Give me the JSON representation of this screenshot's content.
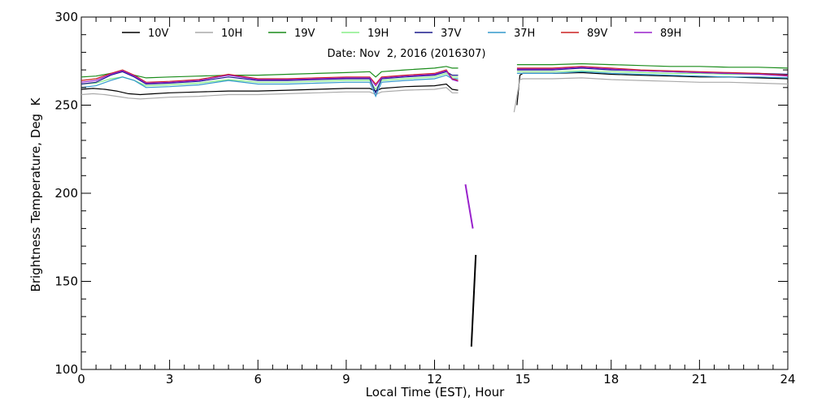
{
  "chart_data": {
    "type": "line",
    "title": "",
    "subtitle": "Date: Nov  2, 2016 (2016307)",
    "xlabel": "Local Time (EST), Hour",
    "ylabel": "Brightness Temperature, Deg  K",
    "xlim": [
      0,
      24
    ],
    "ylim": [
      100,
      300
    ],
    "xticks": [
      0,
      3,
      6,
      9,
      12,
      15,
      18,
      21,
      24
    ],
    "yticks": [
      100,
      150,
      200,
      250,
      300
    ],
    "grid": false,
    "legend_position": "top",
    "series": [
      {
        "name": "10V",
        "color": "#000000",
        "points": [
          [
            0,
            259
          ],
          [
            0.4,
            259.5
          ],
          [
            0.8,
            259
          ],
          [
            1.2,
            258
          ],
          [
            1.6,
            256.5
          ],
          [
            2.0,
            256
          ],
          [
            2.5,
            256.5
          ],
          [
            3,
            257
          ],
          [
            4,
            257.5
          ],
          [
            5,
            258
          ],
          [
            6,
            258
          ],
          [
            7,
            258.5
          ],
          [
            8,
            259
          ],
          [
            9,
            259.5
          ],
          [
            9.8,
            259.5
          ],
          [
            10.0,
            258
          ],
          [
            10.2,
            259.5
          ],
          [
            11,
            260.5
          ],
          [
            12,
            261
          ],
          [
            12.4,
            262
          ],
          [
            12.6,
            259
          ],
          [
            12.8,
            258.5
          ]
        ],
        "points2": [
          [
            13.25,
            113
          ],
          [
            13.4,
            165
          ]
        ],
        "points3": [
          [
            14.8,
            250
          ],
          [
            14.9,
            267
          ],
          [
            15,
            268
          ],
          [
            16,
            268
          ],
          [
            17,
            268.5
          ],
          [
            18,
            267.5
          ],
          [
            19,
            267
          ],
          [
            20,
            266.5
          ],
          [
            21,
            266
          ],
          [
            22,
            266
          ],
          [
            23,
            265.5
          ],
          [
            24,
            265
          ]
        ]
      },
      {
        "name": "10H",
        "color": "#aaaaaa",
        "points": [
          [
            0,
            256
          ],
          [
            0.4,
            256.5
          ],
          [
            0.8,
            256
          ],
          [
            1.2,
            255
          ],
          [
            1.6,
            254
          ],
          [
            2.0,
            253.5
          ],
          [
            2.5,
            254
          ],
          [
            3,
            254.5
          ],
          [
            4,
            255
          ],
          [
            5,
            256
          ],
          [
            6,
            256
          ],
          [
            7,
            256.5
          ],
          [
            8,
            257
          ],
          [
            9,
            257.5
          ],
          [
            9.8,
            257.5
          ],
          [
            10.0,
            256
          ],
          [
            10.2,
            257.5
          ],
          [
            11,
            258.5
          ],
          [
            12,
            259
          ],
          [
            12.4,
            260
          ],
          [
            12.6,
            257
          ],
          [
            12.8,
            257
          ]
        ],
        "points3": [
          [
            14.7,
            246
          ],
          [
            14.9,
            264.5
          ],
          [
            15,
            265
          ],
          [
            16,
            265
          ],
          [
            17,
            265.5
          ],
          [
            18,
            264.5
          ],
          [
            19,
            264
          ],
          [
            20,
            263.5
          ],
          [
            21,
            263
          ],
          [
            22,
            263
          ],
          [
            23,
            262.5
          ],
          [
            24,
            262
          ]
        ]
      },
      {
        "name": "19V",
        "color": "#1a8c1a",
        "points": [
          [
            0,
            266
          ],
          [
            0.5,
            266.5
          ],
          [
            1.0,
            268
          ],
          [
            1.4,
            269
          ],
          [
            1.8,
            267
          ],
          [
            2.2,
            265.5
          ],
          [
            3,
            266
          ],
          [
            4,
            266.5
          ],
          [
            5,
            267
          ],
          [
            6,
            267
          ],
          [
            7,
            267.5
          ],
          [
            8,
            268
          ],
          [
            9,
            268.5
          ],
          [
            9.8,
            269
          ],
          [
            10.0,
            266
          ],
          [
            10.2,
            269
          ],
          [
            11,
            270
          ],
          [
            12,
            271
          ],
          [
            12.4,
            272
          ],
          [
            12.6,
            271
          ],
          [
            12.8,
            271
          ]
        ],
        "points3": [
          [
            14.8,
            273
          ],
          [
            15,
            273
          ],
          [
            16,
            273
          ],
          [
            17,
            273.5
          ],
          [
            18,
            273
          ],
          [
            19,
            272.5
          ],
          [
            20,
            272
          ],
          [
            21,
            272
          ],
          [
            22,
            271.5
          ],
          [
            23,
            271.5
          ],
          [
            24,
            271
          ]
        ]
      },
      {
        "name": "19H",
        "color": "#88ee88",
        "points": [
          [
            0,
            262
          ],
          [
            0.5,
            262.5
          ],
          [
            1.0,
            265
          ],
          [
            1.4,
            266
          ],
          [
            1.8,
            264
          ],
          [
            2.2,
            261
          ],
          [
            3,
            261.5
          ],
          [
            4,
            262.5
          ],
          [
            5,
            264.5
          ],
          [
            6,
            263
          ],
          [
            7,
            263
          ],
          [
            8,
            263.5
          ],
          [
            9,
            264
          ],
          [
            9.8,
            264
          ],
          [
            10.0,
            259
          ],
          [
            10.2,
            264
          ],
          [
            11,
            265
          ],
          [
            12,
            266
          ],
          [
            12.4,
            268
          ],
          [
            12.6,
            266
          ],
          [
            12.8,
            266
          ]
        ],
        "points3": [
          [
            14.8,
            269
          ],
          [
            15,
            269
          ],
          [
            16,
            269
          ],
          [
            17,
            269.5
          ],
          [
            18,
            269
          ],
          [
            19,
            268.5
          ],
          [
            20,
            268
          ],
          [
            21,
            268
          ],
          [
            22,
            267.5
          ],
          [
            23,
            267.5
          ],
          [
            24,
            267
          ]
        ]
      },
      {
        "name": "37V",
        "color": "#1a1a8c",
        "points": [
          [
            0,
            262
          ],
          [
            0.5,
            263
          ],
          [
            1.0,
            267
          ],
          [
            1.4,
            269
          ],
          [
            1.8,
            266
          ],
          [
            2.2,
            262
          ],
          [
            3,
            262.5
          ],
          [
            4,
            263.5
          ],
          [
            5,
            266
          ],
          [
            6,
            264
          ],
          [
            7,
            264
          ],
          [
            8,
            264.5
          ],
          [
            9,
            265
          ],
          [
            9.8,
            265
          ],
          [
            10.0,
            257
          ],
          [
            10.2,
            265
          ],
          [
            11,
            266
          ],
          [
            12,
            267
          ],
          [
            12.4,
            269
          ],
          [
            12.6,
            267
          ],
          [
            12.8,
            267
          ]
        ],
        "points3": [
          [
            14.8,
            270
          ],
          [
            15,
            270
          ],
          [
            16,
            270
          ],
          [
            17,
            271
          ],
          [
            18,
            270
          ],
          [
            19,
            269.5
          ],
          [
            20,
            269
          ],
          [
            21,
            268.5
          ],
          [
            22,
            268
          ],
          [
            23,
            268
          ],
          [
            24,
            267.5
          ]
        ]
      },
      {
        "name": "37H",
        "color": "#3399cc",
        "points": [
          [
            0,
            260
          ],
          [
            0.5,
            261
          ],
          [
            1.0,
            264
          ],
          [
            1.4,
            266
          ],
          [
            1.8,
            264
          ],
          [
            2.2,
            260
          ],
          [
            3,
            260.5
          ],
          [
            4,
            261.5
          ],
          [
            5,
            264
          ],
          [
            6,
            262
          ],
          [
            7,
            262
          ],
          [
            8,
            262.5
          ],
          [
            9,
            263
          ],
          [
            9.8,
            263
          ],
          [
            10.0,
            255
          ],
          [
            10.2,
            263
          ],
          [
            11,
            264
          ],
          [
            12,
            265
          ],
          [
            12.4,
            267
          ],
          [
            12.6,
            265
          ],
          [
            12.8,
            265
          ]
        ],
        "points3": [
          [
            14.8,
            268
          ],
          [
            15,
            268
          ],
          [
            16,
            268
          ],
          [
            17,
            269
          ],
          [
            18,
            268
          ],
          [
            19,
            267.5
          ],
          [
            20,
            267
          ],
          [
            21,
            266.5
          ],
          [
            22,
            266
          ],
          [
            23,
            266
          ],
          [
            24,
            265.5
          ]
        ]
      },
      {
        "name": "89V",
        "color": "#cc2222",
        "points": [
          [
            0,
            264
          ],
          [
            0.5,
            265
          ],
          [
            1.0,
            268
          ],
          [
            1.4,
            270
          ],
          [
            1.8,
            267
          ],
          [
            2.2,
            263
          ],
          [
            3,
            263.5
          ],
          [
            4,
            264.5
          ],
          [
            5,
            267.5
          ],
          [
            6,
            265
          ],
          [
            7,
            265
          ],
          [
            8,
            265.5
          ],
          [
            9,
            266
          ],
          [
            9.8,
            266
          ],
          [
            10.0,
            262
          ],
          [
            10.2,
            266
          ],
          [
            11,
            267
          ],
          [
            12,
            268
          ],
          [
            12.4,
            270
          ],
          [
            12.6,
            265
          ],
          [
            12.8,
            264
          ]
        ],
        "points3": [
          [
            14.8,
            271
          ],
          [
            15,
            271
          ],
          [
            16,
            271
          ],
          [
            17,
            272
          ],
          [
            18,
            271
          ],
          [
            19,
            270
          ],
          [
            20,
            269.5
          ],
          [
            21,
            269
          ],
          [
            22,
            268.5
          ],
          [
            23,
            268
          ],
          [
            24,
            267
          ]
        ]
      },
      {
        "name": "89H",
        "color": "#9922cc",
        "points": [
          [
            0,
            263
          ],
          [
            0.5,
            264
          ],
          [
            1.0,
            267.5
          ],
          [
            1.4,
            269.5
          ],
          [
            1.8,
            266.5
          ],
          [
            2.2,
            262.5
          ],
          [
            3,
            263
          ],
          [
            4,
            264
          ],
          [
            5,
            267
          ],
          [
            6,
            264.5
          ],
          [
            7,
            264.5
          ],
          [
            8,
            265
          ],
          [
            9,
            265.5
          ],
          [
            9.8,
            265.5
          ],
          [
            10.0,
            261
          ],
          [
            10.2,
            265.5
          ],
          [
            11,
            266.5
          ],
          [
            12,
            267.5
          ],
          [
            12.4,
            269.5
          ],
          [
            12.6,
            264.5
          ],
          [
            12.8,
            263.5
          ]
        ],
        "points2": [
          [
            13.05,
            205
          ],
          [
            13.15,
            195
          ],
          [
            13.3,
            180
          ]
        ],
        "points3": [
          [
            14.8,
            270.5
          ],
          [
            15,
            270.5
          ],
          [
            16,
            270.5
          ],
          [
            17,
            271.5
          ],
          [
            18,
            270.5
          ],
          [
            19,
            269.5
          ],
          [
            20,
            269
          ],
          [
            21,
            268.5
          ],
          [
            22,
            268
          ],
          [
            23,
            267.5
          ],
          [
            24,
            266.5
          ]
        ]
      }
    ]
  }
}
